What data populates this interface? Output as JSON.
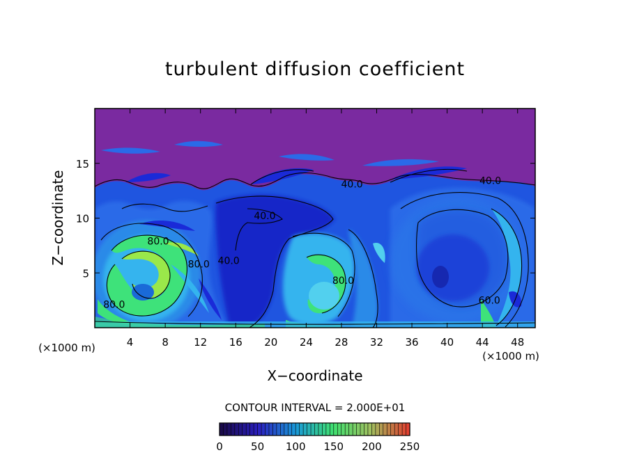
{
  "chart_data": {
    "type": "heatmap",
    "title": "turbulent diffusion coefficient",
    "xlabel": "X−coordinate",
    "ylabel": "Z−coordinate",
    "x_unit_left": "(×1000 m)",
    "x_unit_right": "(×1000 m)",
    "xlim": [
      0,
      50
    ],
    "ylim": [
      0,
      20
    ],
    "x_ticks": [
      4,
      8,
      12,
      16,
      20,
      24,
      28,
      32,
      36,
      40,
      44,
      48
    ],
    "y_ticks": [
      5,
      10,
      15
    ],
    "contour_interval_label": "CONTOUR INTERVAL = 2.000E+01",
    "contour_labels": [
      {
        "text": "40.0",
        "x": 19.3,
        "z": 9.9
      },
      {
        "text": "40.0",
        "x": 15.2,
        "z": 5.8
      },
      {
        "text": "40.0",
        "x": 29.2,
        "z": 12.8
      },
      {
        "text": "40.0",
        "x": 44.9,
        "z": 13.1
      },
      {
        "text": "60.0",
        "x": 44.8,
        "z": 2.2
      },
      {
        "text": "80.0",
        "x": 7.2,
        "z": 7.6
      },
      {
        "text": "80.0",
        "x": 11.8,
        "z": 5.5
      },
      {
        "text": "80.0",
        "x": 2.2,
        "z": 1.8
      },
      {
        "text": "80.0",
        "x": 28.2,
        "z": 4.0
      }
    ],
    "colorbar": {
      "min": 0,
      "max": 250,
      "tick_labels": [
        "0",
        "50",
        "100",
        "150",
        "200",
        "250"
      ],
      "tick_values": [
        0,
        50,
        100,
        150,
        200,
        250
      ],
      "colors": [
        "#1a0a4a",
        "#2a1fbf",
        "#1a9ad8",
        "#40e070",
        "#a0c060",
        "#e04030"
      ]
    },
    "colors": {
      "background_top": "#7a2aa0",
      "deep_blue": "#1a2ad8",
      "mid_blue": "#2a6ae8",
      "cyan": "#34b4ee",
      "light_cyan": "#52d0ee",
      "green": "#3ee27a",
      "light_green": "#9ae84a"
    }
  }
}
